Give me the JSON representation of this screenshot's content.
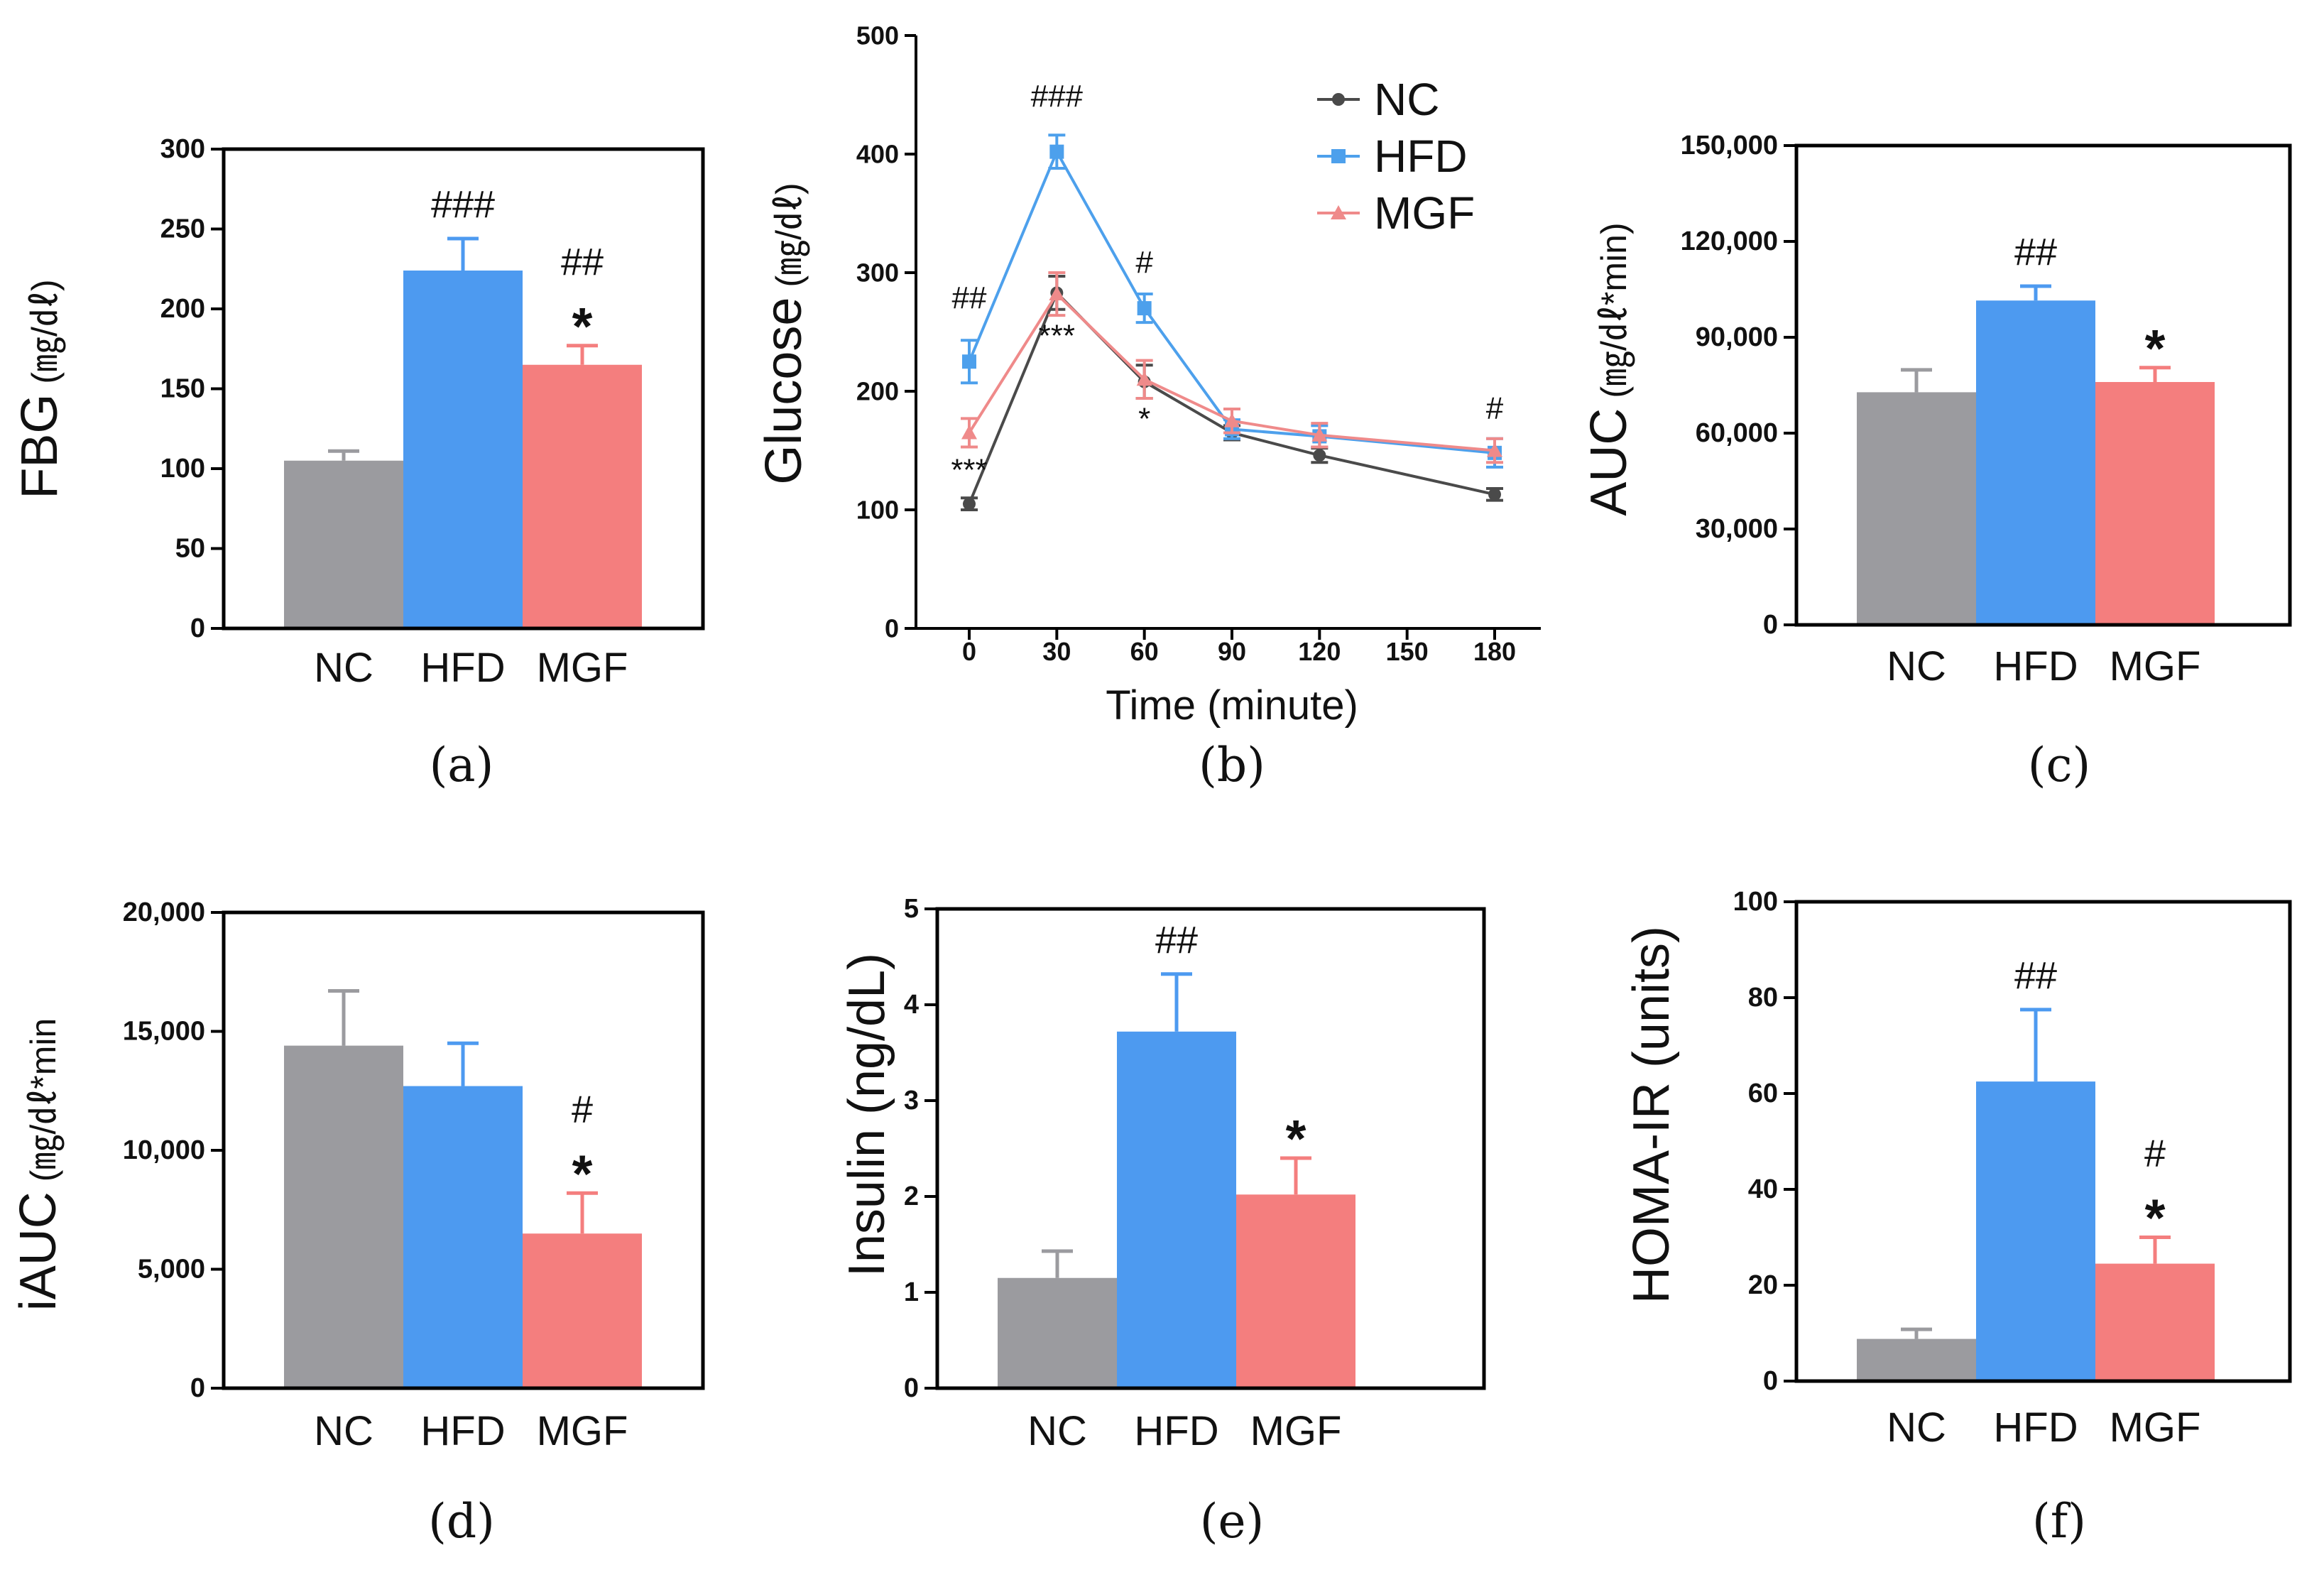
{
  "colors": {
    "NC": "#9b9b9f",
    "HFD": "#4d9af0",
    "MGF": "#f47e7e",
    "hash_blue": "#2b2bb5",
    "star_red": "#c03030",
    "NC_line": "#4a4a4a",
    "HFD_line": "#4da0ec",
    "MGF_line": "#ef8a8a"
  },
  "chart_data": [
    {
      "id": "a",
      "type": "bar",
      "caption": "(a)",
      "ylabel_main": "FBG",
      "ylabel_unit": "(㎎/㎗)",
      "categories": [
        "NC",
        "HFD",
        "MGF"
      ],
      "values": [
        105,
        224,
        165
      ],
      "errors": [
        6,
        20,
        12
      ],
      "ylim": [
        0,
        300
      ],
      "yticks": [
        0,
        50,
        100,
        150,
        200,
        250,
        300
      ],
      "yticklabels": [
        "0",
        "50",
        "100",
        "150",
        "200",
        "250",
        "300"
      ],
      "annotations": [
        {
          "bar": 1,
          "lines": [
            "###"
          ]
        },
        {
          "bar": 2,
          "lines": [
            "##",
            "*"
          ]
        }
      ]
    },
    {
      "id": "b",
      "type": "line",
      "caption": "(b)",
      "ylabel_main": "Glucose",
      "ylabel_unit": "(㎎/㎗)",
      "xlabel": "Time (minute)",
      "x": [
        0,
        30,
        60,
        90,
        120,
        180
      ],
      "xticks": [
        0,
        30,
        60,
        90,
        120,
        150,
        180
      ],
      "xticklabels": [
        "0",
        "30",
        "60",
        "90",
        "120",
        "150",
        "180"
      ],
      "ylim": [
        0,
        500
      ],
      "yticks": [
        0,
        100,
        200,
        300,
        400,
        500
      ],
      "yticklabels": [
        "0",
        "100",
        "200",
        "300",
        "400",
        "500"
      ],
      "series": [
        {
          "name": "NC",
          "values": [
            105,
            283,
            208,
            165,
            146,
            113
          ],
          "errors": [
            5,
            14,
            14,
            6,
            6,
            5
          ],
          "marker": "circle"
        },
        {
          "name": "HFD",
          "values": [
            225,
            402,
            270,
            168,
            162,
            148
          ],
          "errors": [
            18,
            14,
            12,
            8,
            9,
            12
          ],
          "marker": "square"
        },
        {
          "name": "MGF",
          "values": [
            165,
            282,
            210,
            175,
            163,
            150
          ],
          "errors": [
            12,
            18,
            16,
            10,
            10,
            10
          ],
          "marker": "triangle"
        }
      ],
      "legend": [
        "NC",
        "HFD",
        "MGF"
      ],
      "annotations_hash": [
        {
          "x": 0,
          "text": "##",
          "y": 270
        },
        {
          "x": 30,
          "text": "###",
          "y": 440
        },
        {
          "x": 60,
          "text": "#",
          "y": 300
        },
        {
          "x": 180,
          "text": "#",
          "y": 177
        }
      ],
      "annotations_star": [
        {
          "x": 0,
          "text": "***",
          "y": 125
        },
        {
          "x": 30,
          "text": "***",
          "y": 238
        },
        {
          "x": 60,
          "text": "*",
          "y": 168
        }
      ]
    },
    {
      "id": "c",
      "type": "bar",
      "caption": "(c)",
      "ylabel_main": "AUC",
      "ylabel_unit": "(㎎/㎗*min)",
      "categories": [
        "NC",
        "HFD",
        "MGF"
      ],
      "values": [
        72800,
        101500,
        76000
      ],
      "errors": [
        7000,
        4500,
        4500
      ],
      "ylim": [
        0,
        150000
      ],
      "yticks": [
        0,
        30000,
        60000,
        90000,
        120000,
        150000
      ],
      "yticklabels": [
        "0",
        "30,000",
        "60,000",
        "90,000",
        "120,000",
        "150,000"
      ],
      "annotations": [
        {
          "bar": 1,
          "lines": [
            "##"
          ]
        },
        {
          "bar": 2,
          "lines": [
            "*"
          ]
        }
      ]
    },
    {
      "id": "d",
      "type": "bar",
      "caption": "(d)",
      "ylabel_main": "iAUC",
      "ylabel_unit": "(㎎/㎗*min",
      "categories": [
        "NC",
        "HFD",
        "MGF"
      ],
      "values": [
        14400,
        12700,
        6500
      ],
      "errors": [
        2300,
        1800,
        1700
      ],
      "ylim": [
        0,
        20000
      ],
      "yticks": [
        0,
        5000,
        10000,
        15000,
        20000
      ],
      "yticklabels": [
        "0",
        "5,000",
        "10,000",
        "15,000",
        "20,000"
      ],
      "annotations": [
        {
          "bar": 2,
          "lines": [
            "#",
            "*"
          ]
        }
      ]
    },
    {
      "id": "e",
      "type": "bar",
      "caption": "(e)",
      "ylabel_main": "Insulin (ng/dL)",
      "ylabel_unit": "",
      "categories": [
        "NC",
        "HFD",
        "MGF"
      ],
      "values": [
        1.15,
        3.72,
        2.02
      ],
      "errors": [
        0.28,
        0.6,
        0.38
      ],
      "ylim": [
        0,
        5
      ],
      "yticks": [
        0,
        1,
        2,
        3,
        4,
        5
      ],
      "yticklabels": [
        "0",
        "1",
        "2",
        "3",
        "4",
        "5"
      ],
      "annotations": [
        {
          "bar": 1,
          "lines": [
            "##"
          ]
        },
        {
          "bar": 2,
          "lines": [
            "*"
          ]
        }
      ]
    },
    {
      "id": "f",
      "type": "bar",
      "caption": "(f)",
      "ylabel_main": "HOMA-IR (units)",
      "ylabel_unit": "",
      "categories": [
        "NC",
        "HFD",
        "MGF"
      ],
      "values": [
        8.8,
        62.5,
        24.5
      ],
      "errors": [
        2,
        15,
        5.5
      ],
      "ylim": [
        0,
        100
      ],
      "yticks": [
        0,
        20,
        40,
        60,
        80,
        100
      ],
      "yticklabels": [
        "0",
        "20",
        "40",
        "60",
        "80",
        "100"
      ],
      "annotations": [
        {
          "bar": 1,
          "lines": [
            "##"
          ]
        },
        {
          "bar": 2,
          "lines": [
            "#",
            "*"
          ]
        }
      ]
    }
  ]
}
